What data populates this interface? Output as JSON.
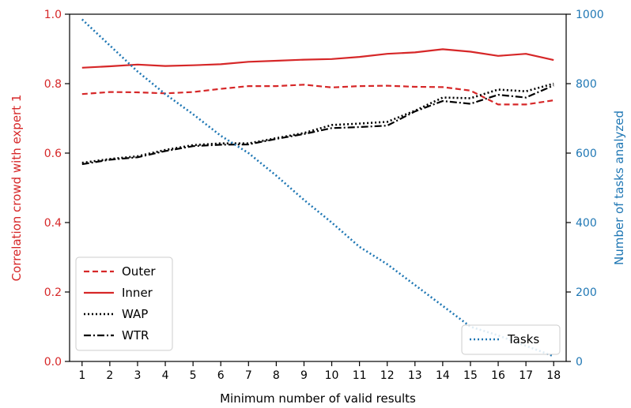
{
  "chart_data": {
    "type": "line",
    "x": [
      1,
      2,
      3,
      4,
      5,
      6,
      7,
      8,
      9,
      10,
      11,
      12,
      13,
      14,
      15,
      16,
      17,
      18
    ],
    "xlabel": "Minimum number of valid results",
    "xticks": [
      "1",
      "2",
      "3",
      "4",
      "5",
      "6",
      "7",
      "8",
      "9",
      "10",
      "11",
      "12",
      "13",
      "14",
      "15",
      "16",
      "17",
      "18"
    ],
    "left_axis": {
      "label": "Correlation crowd with expert 1",
      "color": "#d62728",
      "ylim": [
        0.0,
        1.0
      ],
      "ticks": [
        "0.0",
        "0.2",
        "0.4",
        "0.6",
        "0.8",
        "1.0"
      ]
    },
    "right_axis": {
      "label": "Number of tasks analyzed",
      "color": "#1f77b4",
      "ylim": [
        0,
        1000
      ],
      "ticks": [
        "0",
        "200",
        "400",
        "600",
        "800",
        "1000"
      ]
    },
    "series": [
      {
        "name": "Outer",
        "axis": "left",
        "color": "#d62728",
        "style": "dashed",
        "values": [
          0.77,
          0.776,
          0.775,
          0.772,
          0.776,
          0.785,
          0.793,
          0.793,
          0.797,
          0.789,
          0.793,
          0.794,
          0.791,
          0.79,
          0.78,
          0.74,
          0.74,
          0.752
        ]
      },
      {
        "name": "Inner",
        "axis": "left",
        "color": "#d62728",
        "style": "solid",
        "values": [
          0.846,
          0.85,
          0.855,
          0.851,
          0.853,
          0.856,
          0.863,
          0.866,
          0.869,
          0.871,
          0.877,
          0.886,
          0.89,
          0.899,
          0.892,
          0.88,
          0.886,
          0.868
        ]
      },
      {
        "name": "WAP",
        "axis": "left",
        "color": "#000000",
        "style": "dotted",
        "values": [
          0.572,
          0.583,
          0.591,
          0.609,
          0.623,
          0.628,
          0.628,
          0.643,
          0.658,
          0.681,
          0.685,
          0.69,
          0.722,
          0.76,
          0.758,
          0.783,
          0.778,
          0.8
        ]
      },
      {
        "name": "WTR",
        "axis": "left",
        "color": "#000000",
        "style": "dashdot",
        "values": [
          0.568,
          0.581,
          0.588,
          0.606,
          0.62,
          0.624,
          0.625,
          0.641,
          0.655,
          0.672,
          0.675,
          0.679,
          0.72,
          0.75,
          0.742,
          0.768,
          0.76,
          0.795
        ]
      },
      {
        "name": "Tasks",
        "axis": "right",
        "color": "#1f77b4",
        "style": "dotted",
        "values": [
          985,
          910,
          835,
          770,
          712,
          650,
          600,
          535,
          465,
          400,
          330,
          280,
          220,
          160,
          100,
          75,
          45,
          15
        ]
      }
    ],
    "legends": [
      {
        "placement": "lower-left",
        "entries": [
          "Outer",
          "Inner",
          "WAP",
          "WTR"
        ]
      },
      {
        "placement": "lower-right",
        "entries": [
          "Tasks"
        ]
      }
    ],
    "grid": false
  }
}
